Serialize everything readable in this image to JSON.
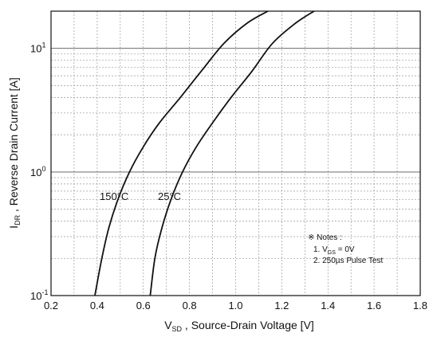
{
  "chart_data": {
    "type": "line",
    "x_axis": {
      "label_main": "V",
      "label_sub": "SD",
      "label_rest": " , Source-Drain Voltage  [V]",
      "range": [
        0.2,
        1.8
      ],
      "ticks": [
        "0.2",
        "0.4",
        "0.6",
        "0.8",
        "1.0",
        "1.2",
        "1.4",
        "1.6",
        "1.8"
      ],
      "scale": "linear"
    },
    "y_axis": {
      "label_main": "I",
      "label_sub": "DR",
      "label_rest": " , Reverse Drain Current  [A]",
      "range": [
        0.1,
        20
      ],
      "scale": "log",
      "ticks": [
        {
          "value": 0.1,
          "base": "10",
          "exp": "-1"
        },
        {
          "value": 1,
          "base": "10",
          "exp": "0"
        },
        {
          "value": 10,
          "base": "10",
          "exp": "1"
        }
      ]
    },
    "grid": true,
    "series": [
      {
        "name": "150°C",
        "x": [
          0.39,
          0.42,
          0.45,
          0.49,
          0.54,
          0.6,
          0.67,
          0.76,
          0.85,
          0.95,
          1.05,
          1.14
        ],
        "y": [
          0.1,
          0.2,
          0.35,
          0.6,
          1.0,
          1.6,
          2.5,
          4.0,
          6.5,
          11,
          16,
          20
        ]
      },
      {
        "name": "25°C",
        "x": [
          0.63,
          0.65,
          0.68,
          0.72,
          0.77,
          0.83,
          0.9,
          0.98,
          1.07,
          1.16,
          1.26,
          1.34
        ],
        "y": [
          0.1,
          0.2,
          0.35,
          0.6,
          1.0,
          1.6,
          2.5,
          4.0,
          6.5,
          11,
          16,
          20
        ]
      }
    ],
    "annotations": {
      "label_150": "150°C",
      "label_25": "25°C",
      "notes_title": "※ Notes :",
      "note1_prefix": "1. V",
      "note1_sub": "GS",
      "note1_suffix": " = 0V",
      "note2": "2. 250µs Pulse Test"
    },
    "colors": {
      "line": "#111111",
      "grid": "#9a9a9a",
      "major_grid": "#555555"
    }
  }
}
